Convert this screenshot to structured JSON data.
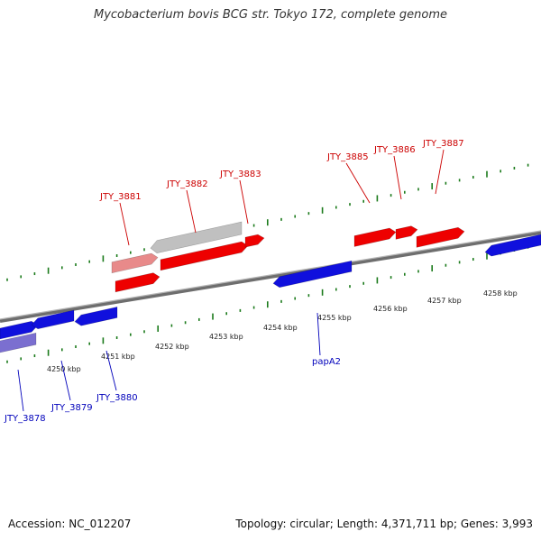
{
  "title": "Mycobacterium bovis BCG str. Tokyo 172, complete genome",
  "footer": {
    "accession": "Accession: NC_012207",
    "topology": "Topology: circular; Length: 4,371,711 bp; Genes: 3,993"
  },
  "colors": {
    "forward_gene": "#ee0000",
    "forward_gene_light": "#e88a8a",
    "pseudo_gene": "#c0c0c0",
    "reverse_gene": "#1010dd",
    "reverse_gene_light": "#7b6fd0",
    "tick": "#1a7a1a",
    "backbone": "#8a8a8a",
    "forward_label": "#cc0000",
    "reverse_label": "#0000bb"
  },
  "kbp_labels": [
    "4250 kbp",
    "4251 kbp",
    "4252 kbp",
    "4253 kbp",
    "4254 kbp",
    "4255 kbp",
    "4256 kbp",
    "4257 kbp",
    "4258 kbp"
  ],
  "upper_labels": [
    "JTY_3881",
    "JTY_3882",
    "JTY_3883",
    "JTY_3885",
    "JTY_3886",
    "JTY_3887"
  ],
  "lower_labels": [
    "JTY_3878",
    "JTY_3879",
    "JTY_3880",
    "papA2"
  ]
}
